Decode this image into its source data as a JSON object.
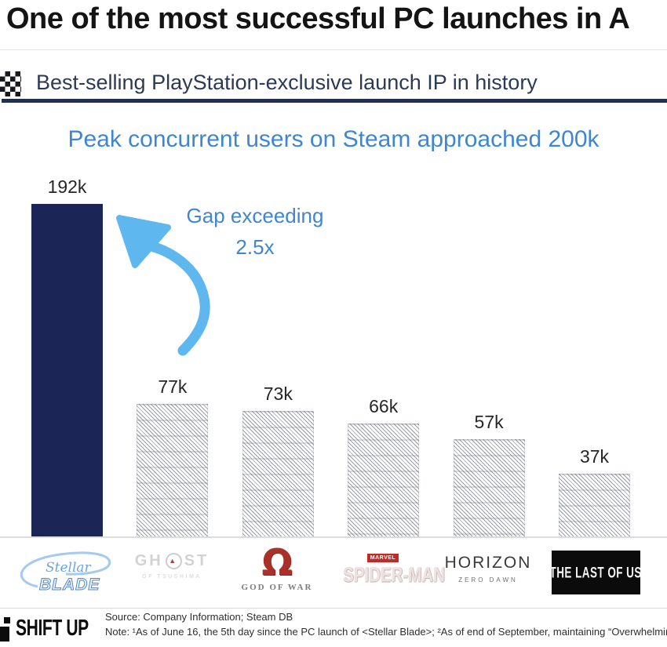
{
  "header": {
    "title": "One of the most successful PC launches in A",
    "section": {
      "icon": "checkered-flag",
      "label": "Best-selling PlayStation-exclusive launch IP in history"
    }
  },
  "chart_data": {
    "type": "bar",
    "title": "Peak concurrent users on Steam approached 200k",
    "categories": [
      "Stellar Blade",
      "Ghost of Tsushima",
      "God of War",
      "Marvel's Spider-Man",
      "Horizon Zero Dawn",
      "The Last of Us"
    ],
    "values": [
      192,
      77,
      73,
      66,
      57,
      37
    ],
    "value_labels": [
      "192k",
      "77k",
      "73k",
      "66k",
      "57k",
      "37k"
    ],
    "unit": "thousand concurrent users",
    "ylim": [
      0,
      200
    ],
    "grid": false,
    "legend": false,
    "highlight_index": 0,
    "highlight_category": "Stellar Blade",
    "bar_style": {
      "highlight": "solid navy",
      "others": "gray diagonal hatch"
    },
    "annotation": {
      "line1": "Gap exceeding",
      "line2": "2.5x",
      "arrow": "curved light-blue arrow pointing to first bar"
    }
  },
  "logos": {
    "stellar_blade": {
      "script": "Stellar",
      "main": "BLADE"
    },
    "ghost": {
      "left": "GH",
      "right": "ST",
      "emblem": "▲",
      "sub": "OF TSUSHIMA"
    },
    "god_of_war": {
      "symbol": "Ω",
      "text": "GOD OF WAR"
    },
    "spider_man": {
      "badge": "MARVEL",
      "main": "SPIDER-MAN"
    },
    "horizon": {
      "main": "HORIZON",
      "sub": "ZERO DAWN"
    },
    "last_of_us": {
      "main": "THE LAST OF US"
    }
  },
  "footer": {
    "brand": "SHIFT UP",
    "source": "Source: Company Information; Steam DB",
    "note": "Note: ¹As of June 16, the 5th day since the PC launch of <Stellar Blade>; ²As of end of September, maintaining “Overwhelmin"
  },
  "colors": {
    "accent_blue": "#3e86d2",
    "arrow_blue": "#5fb7f0",
    "navy_bar": "#1b2556",
    "section_underline": "#22304f"
  }
}
